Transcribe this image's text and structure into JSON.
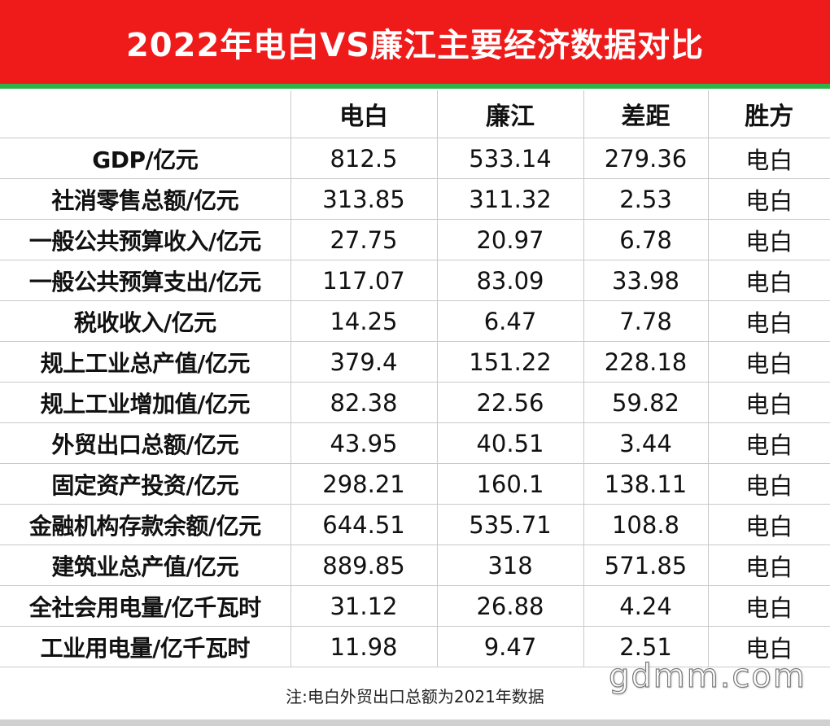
{
  "title": "2022年电白VS廉江主要经济数据对比",
  "colors": {
    "title_bg": "#ef1b1b",
    "accent_line": "#2fb24a"
  },
  "table": {
    "headers": [
      "",
      "电白",
      "廉江",
      "差距",
      "胜方"
    ],
    "rows": [
      [
        "GDP/亿元",
        "812.5",
        "533.14",
        "279.36",
        "电白"
      ],
      [
        "社消零售总额/亿元",
        "313.85",
        "311.32",
        "2.53",
        "电白"
      ],
      [
        "一般公共预算收入/亿元",
        "27.75",
        "20.97",
        "6.78",
        "电白"
      ],
      [
        "一般公共预算支出/亿元",
        "117.07",
        "83.09",
        "33.98",
        "电白"
      ],
      [
        "税收收入/亿元",
        "14.25",
        "6.47",
        "7.78",
        "电白"
      ],
      [
        "规上工业总产值/亿元",
        "379.4",
        "151.22",
        "228.18",
        "电白"
      ],
      [
        "规上工业增加值/亿元",
        "82.38",
        "22.56",
        "59.82",
        "电白"
      ],
      [
        "外贸出口总额/亿元",
        "43.95",
        "40.51",
        "3.44",
        "电白"
      ],
      [
        "固定资产投资/亿元",
        "298.21",
        "160.1",
        "138.11",
        "电白"
      ],
      [
        "金融机构存款余额/亿元",
        "644.51",
        "535.71",
        "108.8",
        "电白"
      ],
      [
        "建筑业总产值/亿元",
        "889.85",
        "318",
        "571.85",
        "电白"
      ],
      [
        "全社会用电量/亿千瓦时",
        "31.12",
        "26.88",
        "4.24",
        "电白"
      ],
      [
        "工业用电量/亿千瓦时",
        "11.98",
        "9.47",
        "2.51",
        "电白"
      ]
    ]
  },
  "note": "注:电白外贸出口总额为2021年数据",
  "watermark": "gdmm.com"
}
